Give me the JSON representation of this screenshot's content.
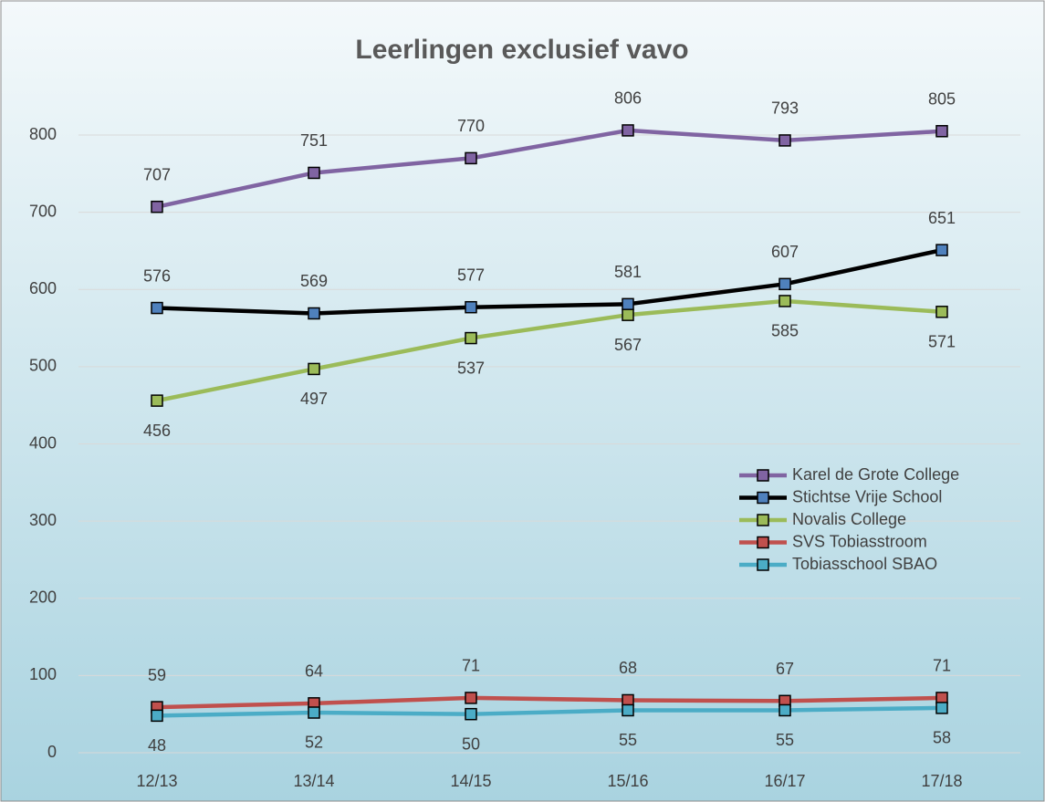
{
  "chart_data": {
    "type": "line",
    "title": "Leerlingen exclusief vavo",
    "categories": [
      "12/13",
      "13/14",
      "14/15",
      "15/16",
      "16/17",
      "17/18"
    ],
    "series": [
      {
        "name": "Karel de Grote College",
        "color": "#8064a2",
        "marker_color": "#8064a2",
        "label_position": "above",
        "values": [
          707,
          751,
          770,
          806,
          793,
          805
        ]
      },
      {
        "name": "Stichtse Vrije School",
        "color": "#000000",
        "marker_color": "#4f81bd",
        "label_position": "above",
        "values": [
          576,
          569,
          577,
          581,
          607,
          651
        ]
      },
      {
        "name": "Novalis College",
        "color": "#9bbb59",
        "marker_color": "#9bbb59",
        "label_position": "below",
        "values": [
          456,
          497,
          537,
          567,
          585,
          571
        ]
      },
      {
        "name": "SVS Tobiasstroom",
        "color": "#c0504d",
        "marker_color": "#c0504d",
        "label_position": "above",
        "values": [
          59,
          64,
          71,
          68,
          67,
          71
        ]
      },
      {
        "name": "Tobiasschool SBAO",
        "color": "#4bacc6",
        "marker_color": "#4bacc6",
        "label_position": "below",
        "values": [
          48,
          52,
          50,
          55,
          55,
          58
        ]
      }
    ],
    "ylim": [
      0,
      800
    ],
    "yticks": [
      0,
      100,
      200,
      300,
      400,
      500,
      600,
      700,
      800
    ],
    "grid": true,
    "legend": "right"
  }
}
